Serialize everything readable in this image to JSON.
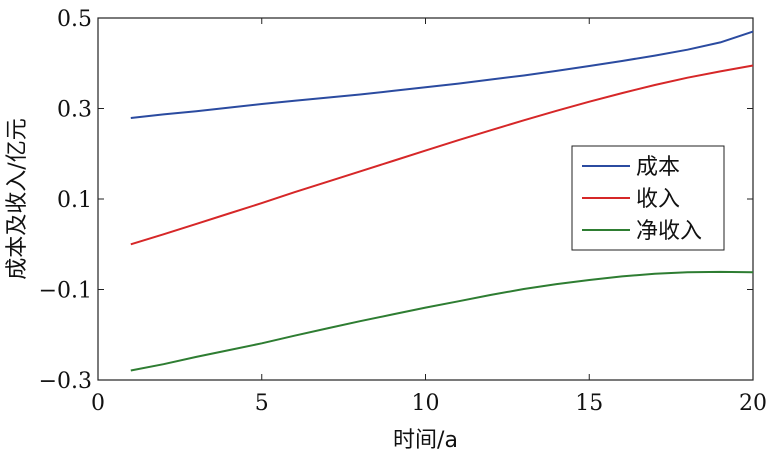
{
  "chart_data": {
    "type": "line",
    "title": "",
    "xlabel": "时间/a",
    "ylabel": "成本及收入/亿元",
    "xlim": [
      0,
      20
    ],
    "ylim": [
      -0.3,
      0.5
    ],
    "xticks": [
      0,
      5,
      10,
      15,
      20
    ],
    "yticks": [
      -0.3,
      -0.1,
      0.1,
      0.3,
      0.5
    ],
    "xtick_labels": [
      "0",
      "5",
      "10",
      "15",
      "20"
    ],
    "ytick_labels": [
      "−0.3",
      "−0.1",
      "0.1",
      "0.3",
      "0.5"
    ],
    "grid": false,
    "legend_position": "right",
    "x": [
      1,
      2,
      3,
      4,
      5,
      6,
      7,
      8,
      9,
      10,
      11,
      12,
      13,
      14,
      15,
      16,
      17,
      18,
      19,
      20
    ],
    "series": [
      {
        "name": "成本",
        "color": "#2b4ba0",
        "values": [
          0.279,
          0.287,
          0.294,
          0.302,
          0.31,
          0.317,
          0.324,
          0.331,
          0.339,
          0.347,
          0.355,
          0.364,
          0.373,
          0.383,
          0.394,
          0.405,
          0.417,
          0.43,
          0.446,
          0.47
        ]
      },
      {
        "name": "收入",
        "color": "#d62728",
        "values": [
          0.0,
          0.022,
          0.045,
          0.068,
          0.091,
          0.115,
          0.138,
          0.161,
          0.184,
          0.207,
          0.23,
          0.252,
          0.274,
          0.295,
          0.315,
          0.334,
          0.352,
          0.368,
          0.382,
          0.395
        ]
      },
      {
        "name": "净收入",
        "color": "#2e7d32",
        "values": [
          -0.279,
          -0.265,
          -0.249,
          -0.234,
          -0.219,
          -0.202,
          -0.186,
          -0.17,
          -0.155,
          -0.14,
          -0.126,
          -0.112,
          -0.099,
          -0.088,
          -0.079,
          -0.071,
          -0.065,
          -0.062,
          -0.061,
          -0.062
        ]
      }
    ]
  }
}
